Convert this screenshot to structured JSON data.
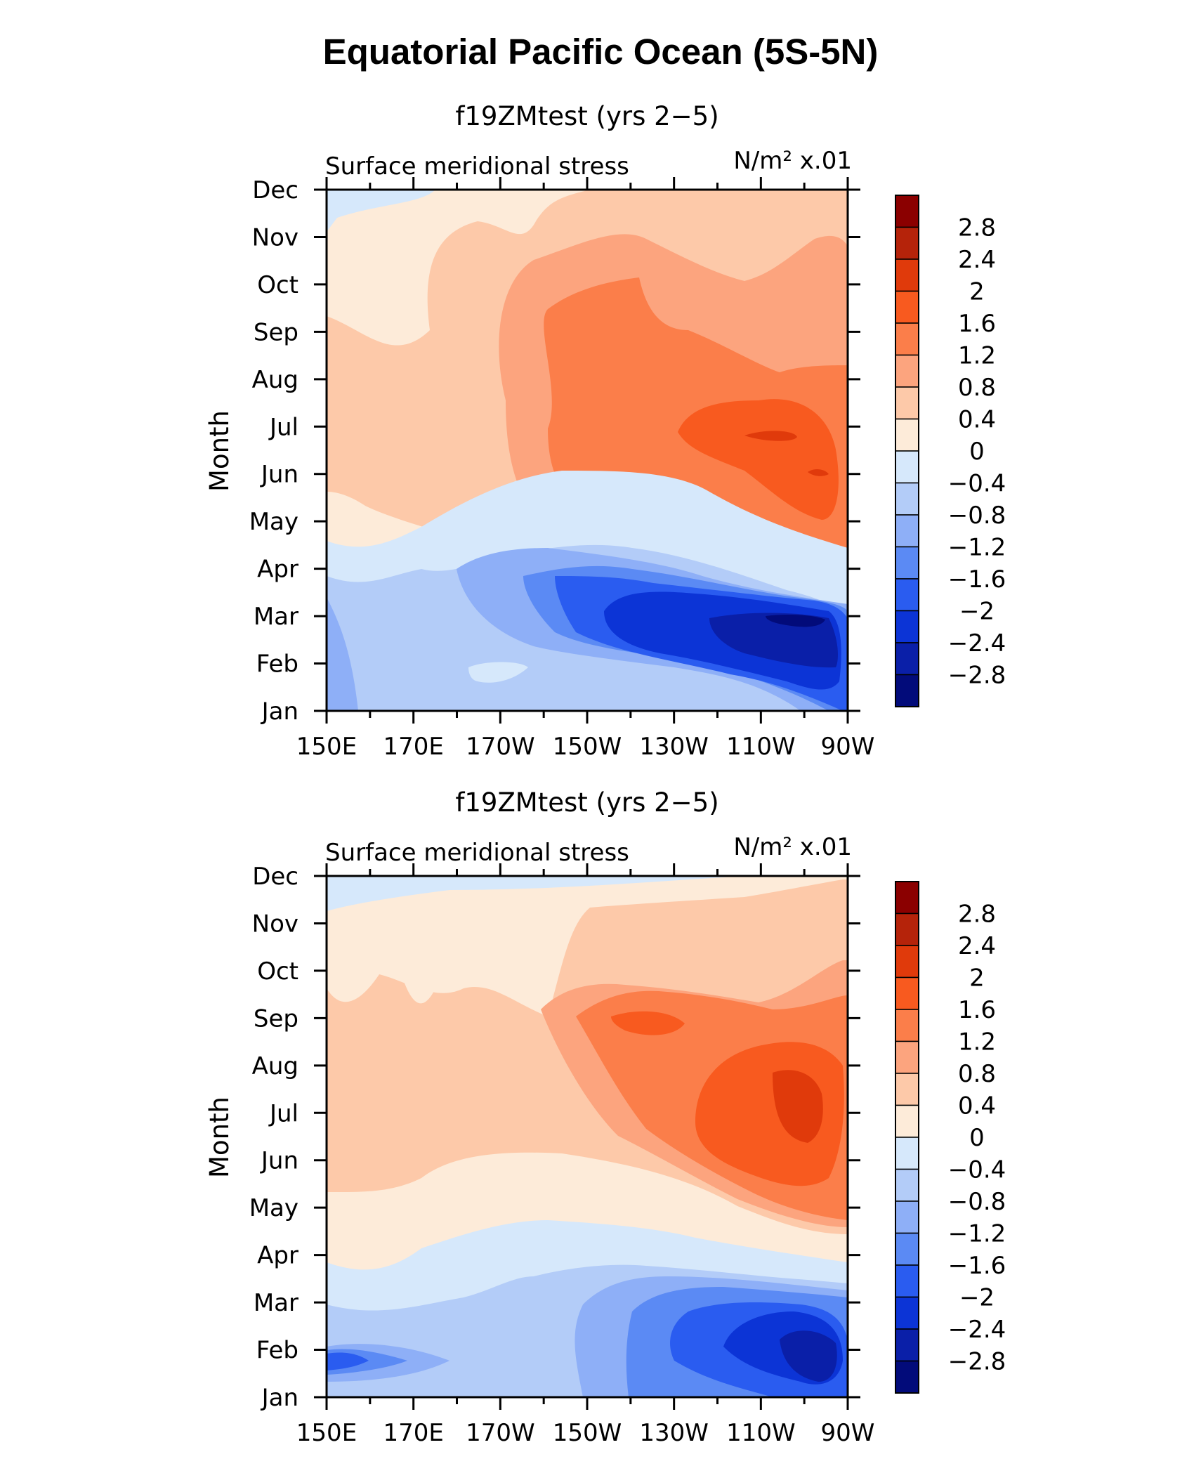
{
  "figure": {
    "title": "Equatorial Pacific Ocean (5S-5N)"
  },
  "panels": [
    {
      "subtitle": "f19ZMtest (yrs 2−5)",
      "left_label": "Surface meridional stress",
      "right_label": "N/m² x.01",
      "ylabel": "Month"
    },
    {
      "subtitle": "f19ZMtest (yrs 2−5)",
      "left_label": "Surface meridional stress",
      "right_label": "N/m² x.01",
      "ylabel": "Month"
    }
  ],
  "chart_data": [
    {
      "type": "heatmap",
      "title": "f19ZMtest (yrs 2−5)",
      "xlabel": "",
      "ylabel": "Month",
      "x_tick_labels": [
        "150E",
        "170E",
        "170W",
        "150W",
        "130W",
        "110W",
        "90W"
      ],
      "x_range_deg_east": [
        150,
        270
      ],
      "y_tick_labels": [
        "Jan",
        "Feb",
        "Mar",
        "Apr",
        "May",
        "Jun",
        "Jul",
        "Aug",
        "Sep",
        "Oct",
        "Nov",
        "Dec"
      ],
      "units": "N/m² x.01",
      "colorbar_labels": [
        "2.8",
        "2.4",
        "2",
        "1.6",
        "1.2",
        "0.8",
        "0.4",
        "0",
        "−0.4",
        "−0.8",
        "−1.2",
        "−1.6",
        "−2",
        "−2.4",
        "−2.8"
      ],
      "colorbar_colors": [
        "#8b0000",
        "#b5230a",
        "#e03a0b",
        "#f85a1f",
        "#fb7e4a",
        "#fca47e",
        "#fdc9a9",
        "#fdebd9",
        "#d6e8fb",
        "#b3ccf8",
        "#8eaff7",
        "#5b8af4",
        "#2a5cf0",
        "#0c34d6",
        "#0a1fa8",
        "#020b7a"
      ],
      "regions": [
        {
          "min_value": 1.2,
          "max_value": 1.6,
          "lon_range": [
            195,
            262
          ],
          "months": [
            "Jul",
            "Oct"
          ]
        },
        {
          "min_value": 1.6,
          "max_value": 2.0,
          "lon_range": [
            227,
            268
          ],
          "months": [
            "Jun",
            "Aug"
          ]
        },
        {
          "min_value": -2.8,
          "max_value": -2.4,
          "lon_range": [
            237,
            267
          ],
          "months": [
            "Feb",
            "Mar"
          ]
        },
        {
          "min_value": -2.0,
          "max_value": -1.6,
          "lon_range": [
            196,
            268
          ],
          "months": [
            "Jan",
            "Apr"
          ]
        }
      ]
    },
    {
      "type": "heatmap",
      "title": "f19ZMtest (yrs 2−5)",
      "xlabel": "",
      "ylabel": "Month",
      "x_tick_labels": [
        "150E",
        "170E",
        "170W",
        "150W",
        "130W",
        "110W",
        "90W"
      ],
      "x_range_deg_east": [
        150,
        270
      ],
      "y_tick_labels": [
        "Jan",
        "Feb",
        "Mar",
        "Apr",
        "May",
        "Jun",
        "Jul",
        "Aug",
        "Sep",
        "Oct",
        "Nov",
        "Dec"
      ],
      "units": "N/m² x.01",
      "colorbar_labels": [
        "2.8",
        "2.4",
        "2",
        "1.6",
        "1.2",
        "0.8",
        "0.4",
        "0",
        "−0.4",
        "−0.8",
        "−1.2",
        "−1.6",
        "−2",
        "−2.4",
        "−2.8"
      ],
      "colorbar_colors": [
        "#8b0000",
        "#b5230a",
        "#e03a0b",
        "#f85a1f",
        "#fb7e4a",
        "#fca47e",
        "#fdc9a9",
        "#fdebd9",
        "#d6e8fb",
        "#b3ccf8",
        "#8eaff7",
        "#5b8af4",
        "#2a5cf0",
        "#0c34d6",
        "#0a1fa8",
        "#020b7a"
      ],
      "regions": [
        {
          "min_value": 1.2,
          "max_value": 1.6,
          "lon_range": [
            208,
            268
          ],
          "months": [
            "Jun",
            "Sep"
          ]
        },
        {
          "min_value": 1.6,
          "max_value": 2.0,
          "lon_range": [
            235,
            265
          ],
          "months": [
            "Jul",
            "Aug"
          ]
        },
        {
          "min_value": -2.4,
          "max_value": -2.0,
          "lon_range": [
            248,
            268
          ],
          "months": [
            "Feb",
            "Mar"
          ]
        },
        {
          "min_value": -1.6,
          "max_value": -1.2,
          "lon_range": [
            150,
            170
          ],
          "months": [
            "Feb",
            "Feb"
          ]
        }
      ]
    }
  ]
}
